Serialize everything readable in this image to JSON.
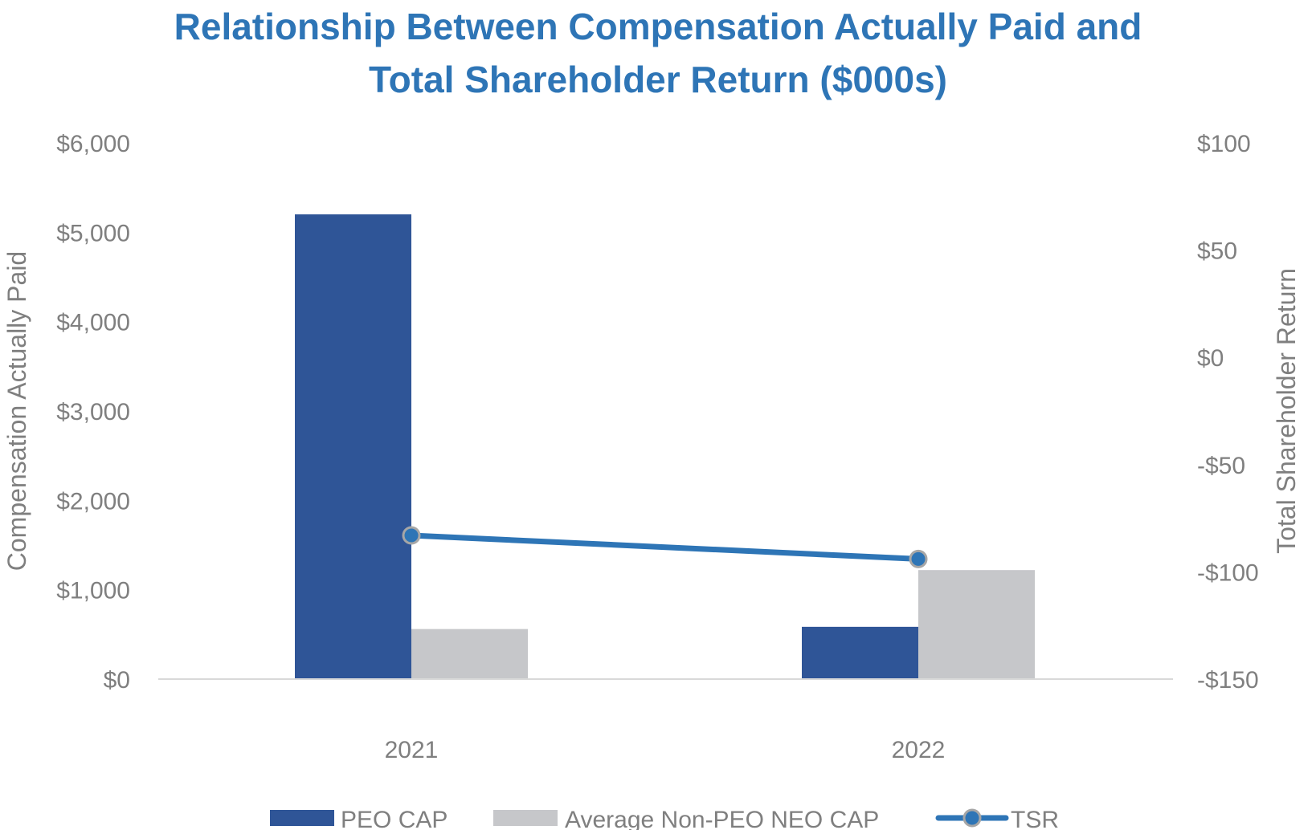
{
  "chart_data": {
    "type": "bar+line",
    "title": "Relationship Between Compensation Actually Paid and Total Shareholder Return ($000s)",
    "title_lines": [
      "Relationship Between Compensation Actually Paid and",
      "Total Shareholder Return ($000s)"
    ],
    "categories": [
      "2021",
      "2022"
    ],
    "xlabel": "",
    "ylabel": "Compensation Actually Paid",
    "y2label": "Total Shareholder Return",
    "ylim": [
      0,
      6000
    ],
    "y2lim": [
      -150,
      100
    ],
    "yticks": [
      "$0",
      "$1,000",
      "$2,000",
      "$3,000",
      "$4,000",
      "$5,000",
      "$6,000"
    ],
    "y2ticks": [
      "-$150",
      "-$100",
      "-$50",
      "$0",
      "$50",
      "$100"
    ],
    "grid": false,
    "legend_position": "bottom",
    "series": [
      {
        "name": "PEO CAP",
        "type": "bar",
        "axis": "left",
        "color": "#2F5597",
        "values": [
          5200,
          585
        ]
      },
      {
        "name": "Average Non-PEO NEO CAP",
        "type": "bar",
        "axis": "left",
        "color": "#C6C7CA",
        "values": [
          560,
          1220
        ]
      },
      {
        "name": "TSR",
        "type": "line",
        "axis": "right",
        "color": "#2E75B6",
        "marker": "circle",
        "values": [
          -83,
          -94
        ]
      }
    ]
  },
  "colors": {
    "title": "#2E75B6",
    "peo": "#2F5597",
    "non_peo": "#C6C7CA",
    "tsr": "#2E75B6",
    "marker_border": "#A6A6A6",
    "axis_text": "#7F7F7F",
    "baseline": "#D9D9D9"
  }
}
